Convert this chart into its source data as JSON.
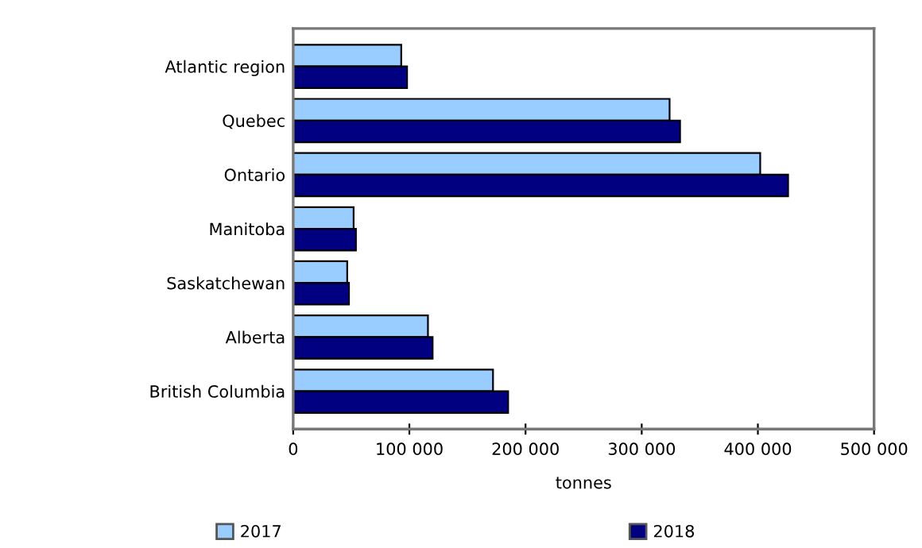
{
  "chart_data": {
    "type": "bar",
    "orientation": "horizontal",
    "xlabel": "tonnes",
    "categories": [
      "Atlantic region",
      "Quebec",
      "Ontario",
      "Manitoba",
      "Saskatchewan",
      "Alberta",
      "British Columbia"
    ],
    "series": [
      {
        "name": "2017",
        "color": "#99ccff",
        "values": [
          93000,
          324000,
          402000,
          52000,
          46500,
          116000,
          172000
        ]
      },
      {
        "name": "2018",
        "color": "#000080",
        "values": [
          98000,
          333000,
          426000,
          54000,
          48000,
          120000,
          185000
        ]
      }
    ],
    "xlim": [
      0,
      500000
    ],
    "xticks": [
      {
        "value": 0,
        "label": "0"
      },
      {
        "value": 100000,
        "label": "100 000"
      },
      {
        "value": 200000,
        "label": "200 000"
      },
      {
        "value": 300000,
        "label": "300 000"
      },
      {
        "value": 400000,
        "label": "400 000"
      },
      {
        "value": 500000,
        "label": "500 000"
      }
    ],
    "grid": false,
    "legend": "bottom"
  }
}
